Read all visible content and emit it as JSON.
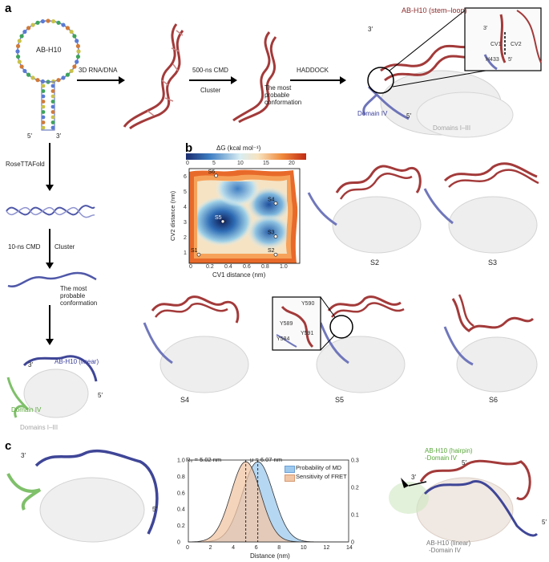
{
  "panels": {
    "a": "a",
    "b": "b",
    "c": "c"
  },
  "panel_a": {
    "hairpin_label": "AB-H10",
    "five_prime": "5′",
    "three_prime": "3′",
    "step1": "3D RNA/DNA",
    "step2_top": "500-ns CMD",
    "step2_bottom": "Cluster",
    "most_probable_1": "The most",
    "most_probable_2": "probable",
    "most_probable_3": "conformation",
    "haddock": "HADDOCK",
    "stemloop_label": "AB-H10 (stem–loop)",
    "domain_iv": "Domain IV",
    "domains_i_iii": "Domains I–III",
    "cv1": "CV1",
    "cv2": "CV2",
    "h433": "H433",
    "rosettafold": "RoseTTAFold",
    "cmd10": "10-ns CMD",
    "cluster": "Cluster",
    "linear_label": "AB-H10 (linear)",
    "domain_iv_2": "Domain IV",
    "domains_i_iii_2": "Domains I–III"
  },
  "panel_b": {
    "colorbar_title": "ΔG (kcal mol⁻¹)",
    "colorbar_ticks": [
      "0",
      "5",
      "10",
      "15",
      "20"
    ],
    "xlabel": "CV1 distance (nm)",
    "ylabel": "CV2 distance (nm)",
    "xticks": [
      "0",
      "0.2",
      "0.4",
      "0.6",
      "0.8",
      "1.0"
    ],
    "yticks": [
      "1",
      "2",
      "3",
      "4",
      "5",
      "6"
    ],
    "states": [
      {
        "label": "S1",
        "x": 0.1,
        "y": 1.05
      },
      {
        "label": "S2",
        "x": 0.9,
        "y": 1.05
      },
      {
        "label": "S3",
        "x": 0.9,
        "y": 2.2
      },
      {
        "label": "S4",
        "x": 0.9,
        "y": 4.3
      },
      {
        "label": "S5",
        "x": 0.35,
        "y": 3.15
      },
      {
        "label": "S6",
        "x": 0.28,
        "y": 6.05
      }
    ],
    "structure_labels": [
      "S2",
      "S3",
      "S4",
      "S5",
      "S6"
    ],
    "s5_residues": [
      "Y590",
      "Y589",
      "Y584",
      "Y591"
    ]
  },
  "panel_c": {
    "three_prime": "3′",
    "five_prime": "5′",
    "r0_label": "R₀ = 5.02 nm",
    "mu_label": "μ = 6.07 nm",
    "legend_md": "Probability of MD",
    "legend_fret": "Sensitivity of FRET",
    "xlabel": "Distance (nm)",
    "xticks": [
      "0",
      "2",
      "4",
      "6",
      "8",
      "10",
      "12",
      "14"
    ],
    "yticks_left": [
      "0",
      "0.2",
      "0.4",
      "0.6",
      "0.8",
      "1.0"
    ],
    "yticks_right": [
      "0",
      "0.1",
      "0.2",
      "0.3"
    ],
    "hairpin_label_1": "AB-H10 (hairpin)",
    "hairpin_label_2": "-Domain IV",
    "linear_label_1": "AB-H10 (linear)",
    "linear_label_2": "-Domain IV",
    "five_prime_a": "5′",
    "five_prime_b": "5′",
    "three_prime_b": "3′"
  },
  "chart_data": {
    "type": "area",
    "xlabel": "Distance (nm)",
    "xlim": [
      0,
      14
    ],
    "ylim_left": [
      0,
      1.0
    ],
    "ylim_right": [
      0,
      0.3
    ],
    "series": [
      {
        "name": "Probability of MD",
        "color": "#9ec9ee",
        "mu": 6.07,
        "sigma": 1.35
      },
      {
        "name": "Sensitivity of FRET",
        "color": "#f1c6a6",
        "mu": 5.02,
        "sigma": 1.3
      }
    ],
    "vlines": [
      5.02,
      6.07
    ]
  }
}
